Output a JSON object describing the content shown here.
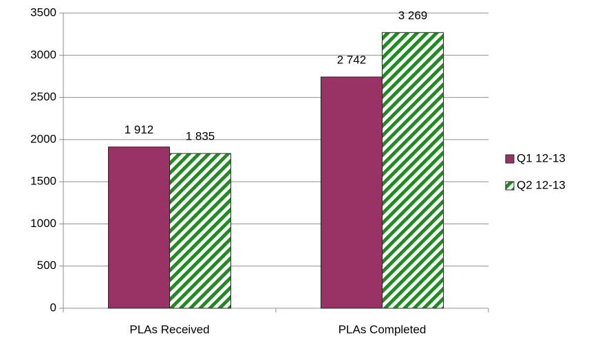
{
  "chart_data": {
    "type": "bar",
    "categories": [
      "PLAs Received",
      "PLAs Completed"
    ],
    "series": [
      {
        "name": "Q1 12-13",
        "color": "#993366",
        "values": [
          1912,
          2742
        ],
        "value_labels": [
          "1 912",
          "2 742"
        ]
      },
      {
        "name": "Q2 12-13",
        "color": "#1e8c1e",
        "pattern": "hatch",
        "values": [
          1835,
          3269
        ],
        "value_labels": [
          "1 835",
          "3 269"
        ]
      }
    ],
    "ylim": [
      0,
      3500
    ],
    "yticks": [
      0,
      500,
      1000,
      1500,
      2000,
      2500,
      3000,
      3500
    ],
    "grid": true,
    "legend": "right"
  }
}
